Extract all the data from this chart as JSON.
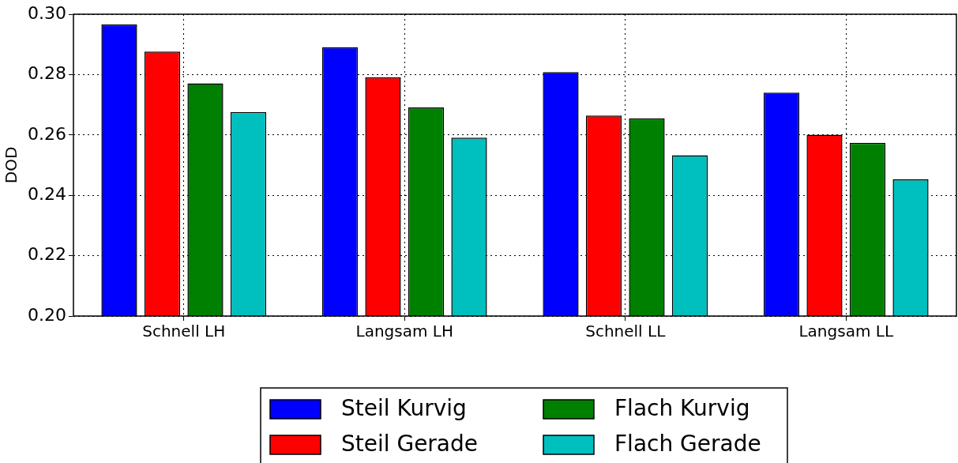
{
  "chart_data": {
    "type": "bar",
    "ylabel": "DOD",
    "categories": [
      "Schnell LH",
      "Langsam LH",
      "Schnell LL",
      "Langsam LL"
    ],
    "series": [
      {
        "name": "Steil Kurvig",
        "color": "#0000ff",
        "values": [
          0.2966,
          0.2891,
          0.2808,
          0.274
        ]
      },
      {
        "name": "Steil Gerade",
        "color": "#ff0000",
        "values": [
          0.2876,
          0.2791,
          0.2664,
          0.2601
        ]
      },
      {
        "name": "Flach Kurvig",
        "color": "#008000",
        "values": [
          0.2771,
          0.2691,
          0.2655,
          0.2574
        ]
      },
      {
        "name": "Flach Gerade",
        "color": "#00bfbf",
        "values": [
          0.2676,
          0.2591,
          0.2533,
          0.2453
        ]
      }
    ],
    "ylim": [
      0.2,
      0.3
    ],
    "yticks": [
      {
        "value": 0.2,
        "label": "0.20"
      },
      0.22,
      0.24,
      0.26,
      0.28,
      {
        "value": 0.3,
        "label": "0.30"
      }
    ],
    "grid": true,
    "legend": "bottom"
  }
}
